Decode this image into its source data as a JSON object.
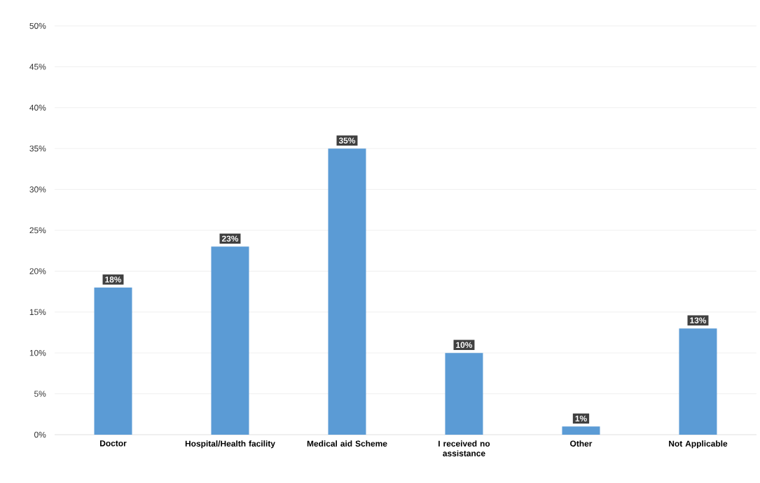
{
  "chart_data": {
    "type": "bar",
    "categories": [
      "Doctor",
      "Hospital/Health facility",
      "Medical aid Scheme",
      "I received no assistance",
      "Other",
      "Not Applicable"
    ],
    "values": [
      18,
      23,
      35,
      10,
      1,
      13
    ],
    "value_labels": [
      "18%",
      "23%",
      "35%",
      "10%",
      "1%",
      "13%"
    ],
    "color": "#5b9bd5",
    "ylim": [
      0,
      50
    ],
    "yticks": [
      {
        "value": 0,
        "label": "0%"
      },
      {
        "value": 5,
        "label": "5%"
      },
      {
        "value": 10,
        "label": "10%"
      },
      {
        "value": 15,
        "label": "15%"
      },
      {
        "value": 20,
        "label": "20%"
      },
      {
        "value": 25,
        "label": "25%"
      },
      {
        "value": 30,
        "label": "30%"
      },
      {
        "value": 35,
        "label": "35%"
      },
      {
        "value": 40,
        "label": "40%"
      },
      {
        "value": 45,
        "label": "45%"
      },
      {
        "value": 50,
        "label": "50%"
      }
    ],
    "grid": "y"
  }
}
